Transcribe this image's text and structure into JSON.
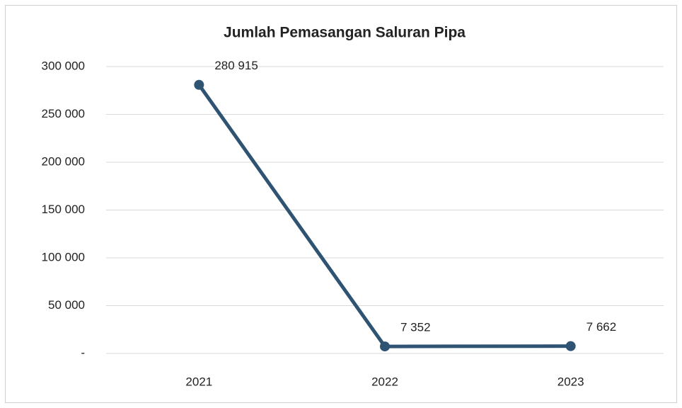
{
  "chart_data": {
    "type": "line",
    "title": "Jumlah Pemasangan Saluran Pipa",
    "categories": [
      "2021",
      "2022",
      "2023"
    ],
    "series": [
      {
        "name": "Jumlah Pemasangan Saluran Pipa",
        "color": "#2f5372",
        "values": [
          280915,
          7352,
          7662
        ],
        "value_labels": [
          "280 915",
          "7 352",
          "7 662"
        ]
      }
    ],
    "ylim": [
      0,
      300000
    ],
    "yticks": [
      {
        "value": 0,
        "label": "-"
      },
      {
        "value": 50000,
        "label": "50 000"
      },
      {
        "value": 100000,
        "label": "100 000"
      },
      {
        "value": 150000,
        "label": "150 000"
      },
      {
        "value": 200000,
        "label": "200 000"
      },
      {
        "value": 250000,
        "label": "250 000"
      },
      {
        "value": 300000,
        "label": "300 000"
      }
    ],
    "grid": true
  }
}
